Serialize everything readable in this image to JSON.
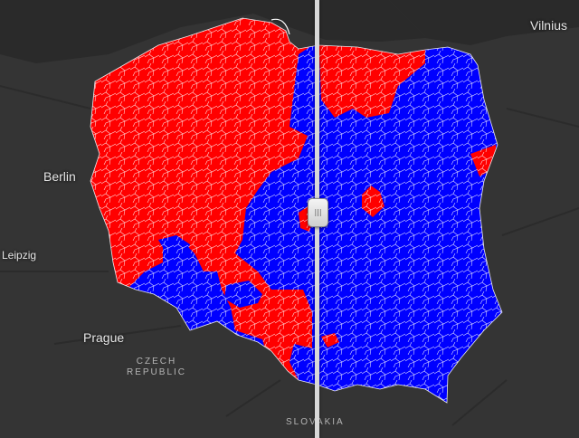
{
  "map": {
    "colors": {
      "background": "#343434",
      "land": "#3c3c3c",
      "water": "#262626",
      "party_red": "#ff0000",
      "party_blue": "#0000ff",
      "district_borders": "#ffffff"
    }
  },
  "labels": {
    "vilnius": "Vilnius",
    "berlin": "Berlin",
    "leipzig": "Leipzig",
    "prague": "Prague",
    "czech_line1": "CZECH",
    "czech_line2": "REPUBLIC",
    "slovakia": "SLOVAKIA"
  },
  "swipe": {
    "grip_icon": "|||"
  }
}
